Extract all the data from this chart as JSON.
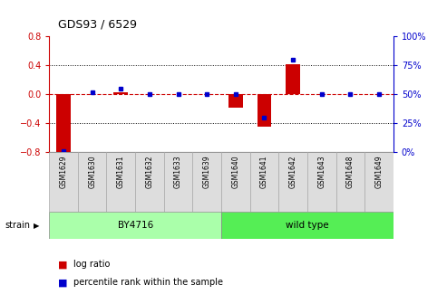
{
  "title": "GDS93 / 6529",
  "samples": [
    "GSM1629",
    "GSM1630",
    "GSM1631",
    "GSM1632",
    "GSM1633",
    "GSM1639",
    "GSM1640",
    "GSM1641",
    "GSM1642",
    "GSM1643",
    "GSM1648",
    "GSM1649"
  ],
  "log_ratio": [
    -0.8,
    0.0,
    0.03,
    0.0,
    0.0,
    0.0,
    -0.18,
    -0.45,
    0.41,
    0.0,
    0.0,
    0.0
  ],
  "percentile_rank": [
    1.0,
    52.0,
    55.0,
    50.0,
    50.0,
    50.0,
    50.0,
    30.0,
    80.0,
    50.0,
    50.0,
    50.0
  ],
  "strain_groups": [
    {
      "label": "BY4716",
      "start": 0,
      "end": 5,
      "color": "#90ee90"
    },
    {
      "label": "wild type",
      "start": 6,
      "end": 11,
      "color": "#55dd55"
    }
  ],
  "ylim_left": [
    -0.8,
    0.8
  ],
  "ylim_right": [
    0,
    100
  ],
  "left_yticks": [
    -0.8,
    -0.4,
    0.0,
    0.4,
    0.8
  ],
  "right_yticks": [
    0,
    25,
    50,
    75,
    100
  ],
  "bar_color": "#cc0000",
  "dot_color": "#0000cc",
  "zero_line_color": "#cc0000",
  "grid_color": "#000000",
  "bg_color": "#ffffff",
  "strain_label": "strain",
  "legend_items": [
    {
      "label": "log ratio",
      "color": "#cc0000"
    },
    {
      "label": "percentile rank within the sample",
      "color": "#0000cc"
    }
  ],
  "label_bg": "#dddddd",
  "by4716_color": "#aaffaa",
  "wildtype_color": "#55ee55"
}
